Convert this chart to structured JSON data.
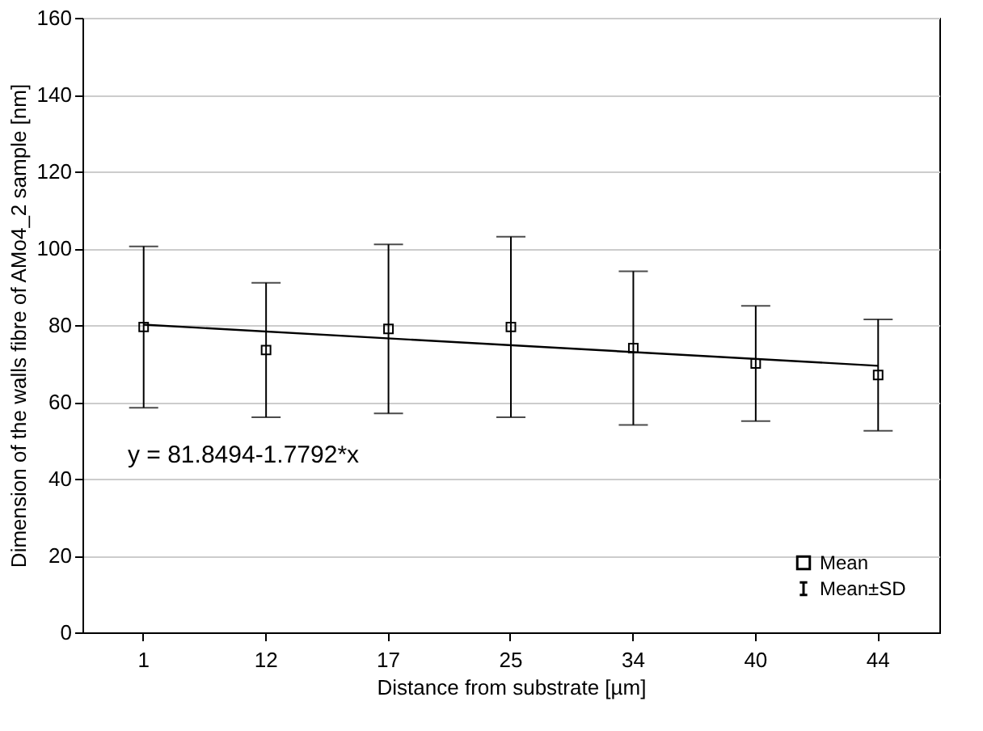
{
  "chart_data": {
    "type": "scatter",
    "xlabel": "Distance from substrate [µm]",
    "ylabel": "Dimension of the walls fibre of AMo4_2 sample [nm]",
    "categories": [
      "1",
      "12",
      "17",
      "25",
      "34",
      "40",
      "44"
    ],
    "series": [
      {
        "name": "Mean",
        "color": "#000000",
        "marker": "square",
        "values": [
          79.5,
          73.5,
          79,
          79.5,
          74,
          70,
          67
        ],
        "errors": [
          21,
          17.5,
          22,
          23.5,
          20,
          15,
          14.5
        ]
      },
      {
        "type": "line",
        "color": "#000000",
        "x": [
          "1",
          "44"
        ],
        "values": [
          80.1,
          69.4
        ]
      }
    ],
    "annotations": [
      "y = 81.8494-1.7792*x",
      "Mean±SD"
    ],
    "ylim": [
      0,
      160
    ],
    "yticks": [
      0,
      20,
      40,
      60,
      80,
      100,
      120,
      140,
      160
    ],
    "grid": "y",
    "legend": "bottom right"
  }
}
